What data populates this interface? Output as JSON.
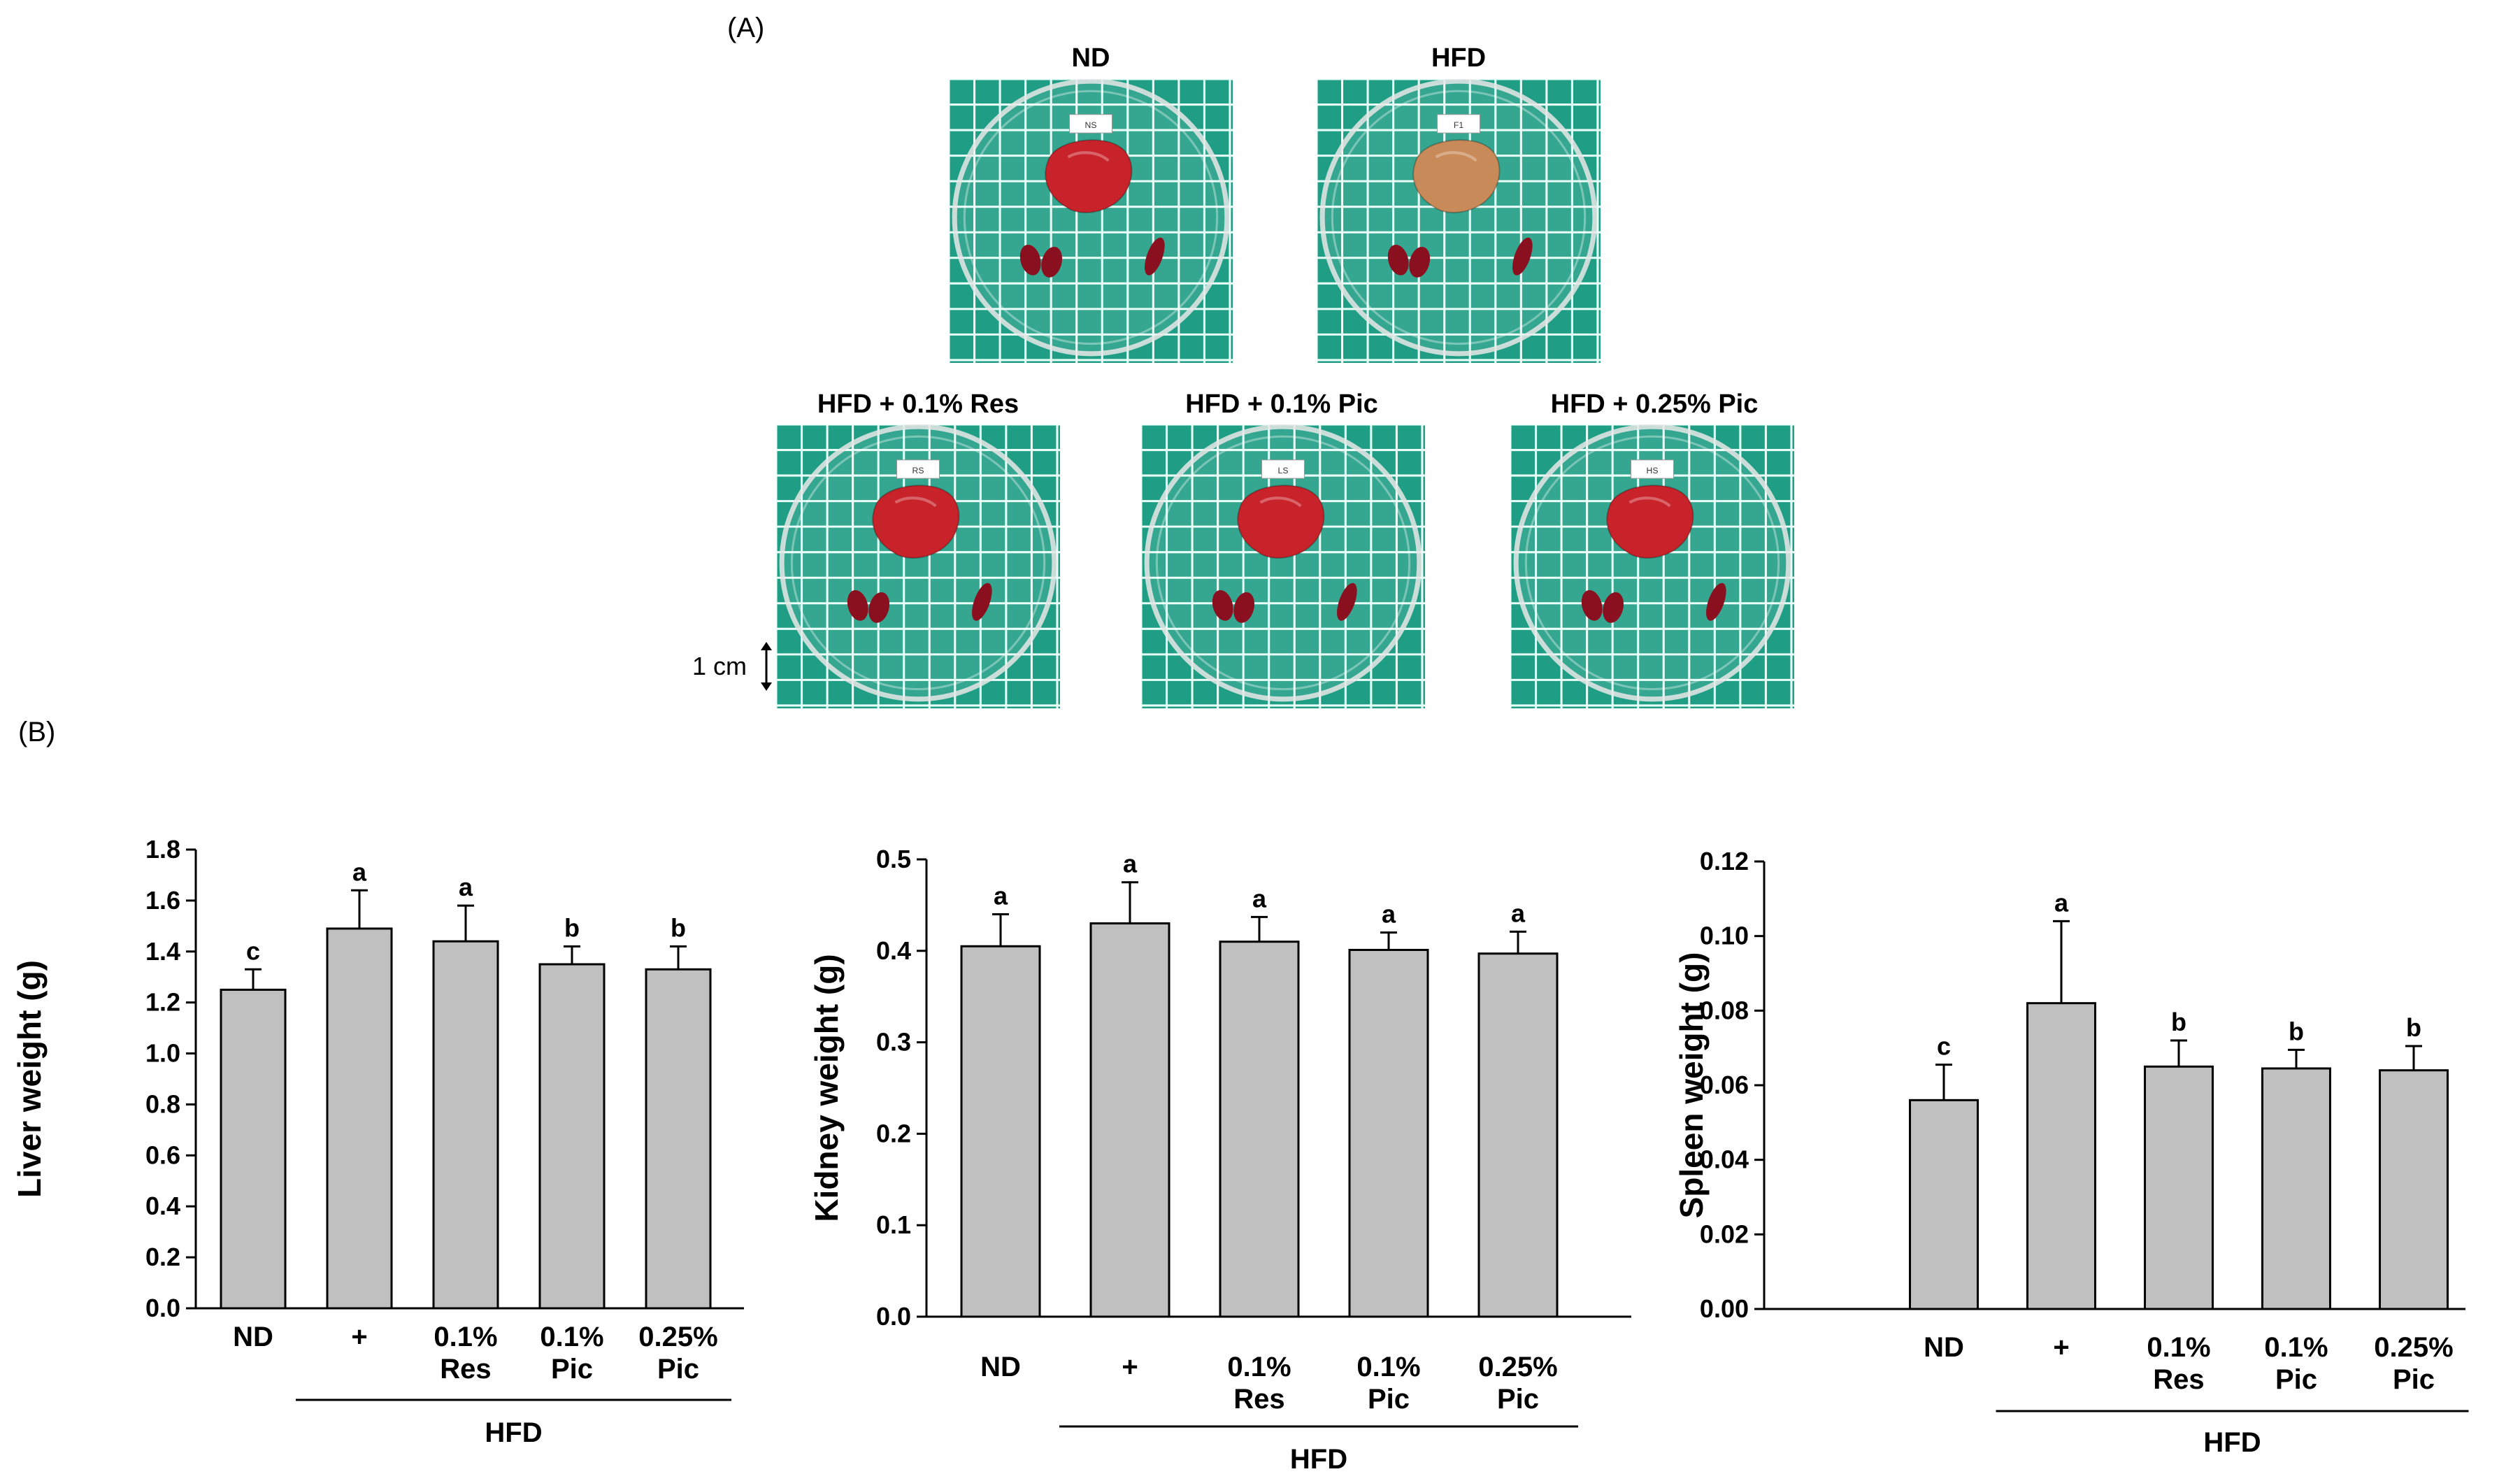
{
  "panels": {
    "a": "(A)",
    "b": "(B)"
  },
  "photos": [
    {
      "title": "ND",
      "tag": "NS"
    },
    {
      "title": "HFD",
      "tag": "F1"
    },
    {
      "title": "HFD + 0.1% Res",
      "tag": "RS"
    },
    {
      "title": "HFD + 0.1% Pic",
      "tag": "LS"
    },
    {
      "title": "HFD + 0.25% Pic",
      "tag": "HS"
    }
  ],
  "scale_bar": {
    "label": "1 cm"
  },
  "colors": {
    "bar": "#c0c0c0",
    "grid_bg": "#1f9e85",
    "grid_line": "#e8fff8",
    "liver_normal": "#c8222a",
    "liver_hfd": "#c98a5a",
    "kidney": "#8a1020"
  },
  "chart_data": [
    {
      "type": "bar",
      "ylabel": "Liver weight (g)",
      "ylim": [
        0,
        1.8
      ],
      "yticks": [
        "0.0",
        "0.2",
        "0.4",
        "0.6",
        "0.8",
        "1.0",
        "1.2",
        "1.4",
        "1.6",
        "1.8"
      ],
      "categories": [
        [
          "ND"
        ],
        [
          "+"
        ],
        [
          "0.1%",
          "Res"
        ],
        [
          "0.1%",
          "Pic"
        ],
        [
          "0.25%",
          "Pic"
        ]
      ],
      "group_label": "HFD",
      "values": [
        1.25,
        1.49,
        1.44,
        1.35,
        1.33
      ],
      "errors": [
        0.08,
        0.15,
        0.14,
        0.07,
        0.09
      ],
      "letters": [
        "c",
        "a",
        "a",
        "b",
        "b"
      ]
    },
    {
      "type": "bar",
      "ylabel": "Kidney weight (g)",
      "ylim": [
        0,
        0.5
      ],
      "yticks": [
        "0.0",
        "0.1",
        "0.2",
        "0.3",
        "0.4",
        "0.5"
      ],
      "categories": [
        [
          "ND"
        ],
        [
          "+"
        ],
        [
          "0.1%",
          "Res"
        ],
        [
          "0.1%",
          "Pic"
        ],
        [
          "0.25%",
          "Pic"
        ]
      ],
      "group_label": "HFD",
      "values": [
        0.405,
        0.43,
        0.41,
        0.401,
        0.397
      ],
      "errors": [
        0.035,
        0.045,
        0.027,
        0.019,
        0.024
      ],
      "letters": [
        "a",
        "a",
        "a",
        "a",
        "a"
      ]
    },
    {
      "type": "bar",
      "ylabel": "Spleen weight (g)",
      "ylim": [
        0,
        0.12
      ],
      "yticks": [
        "0.00",
        "0.02",
        "0.04",
        "0.06",
        "0.08",
        "0.10",
        "0.12"
      ],
      "categories": [
        [
          "ND"
        ],
        [
          "+"
        ],
        [
          "0.1%",
          "Res"
        ],
        [
          "0.1%",
          "Pic"
        ],
        [
          "0.25%",
          "Pic"
        ]
      ],
      "group_label": "HFD",
      "values": [
        0.056,
        0.082,
        0.065,
        0.0645,
        0.064
      ],
      "errors": [
        0.0095,
        0.022,
        0.007,
        0.005,
        0.0065
      ],
      "letters": [
        "c",
        "a",
        "b",
        "b",
        "b"
      ]
    }
  ]
}
